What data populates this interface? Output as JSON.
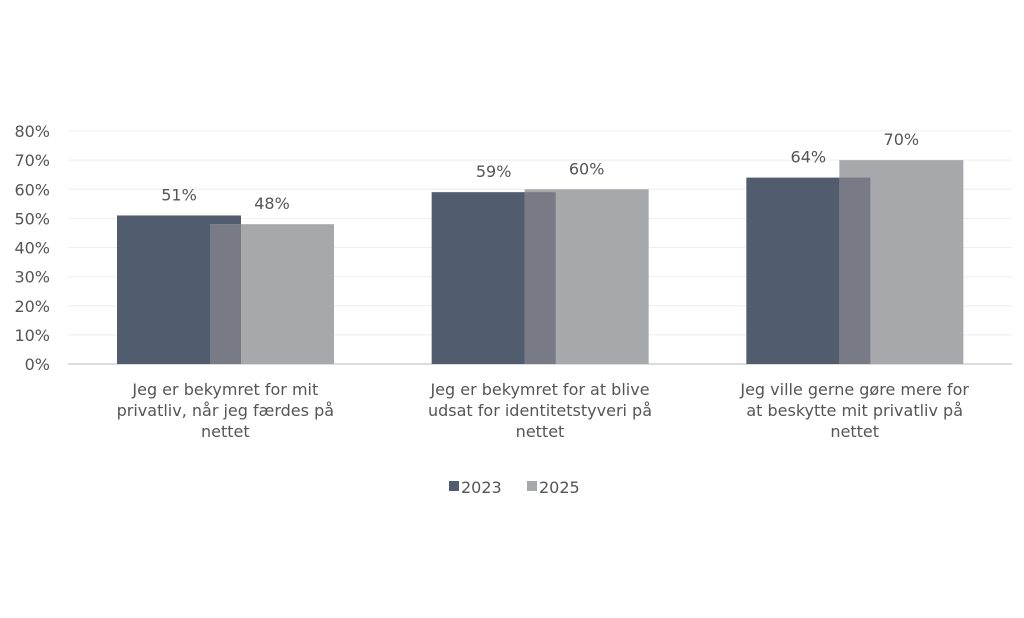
{
  "chart_data": {
    "type": "bar",
    "categories": [
      [
        "Jeg er bekymret for mit",
        "privatliv, når jeg færdes på",
        "nettet"
      ],
      [
        "Jeg er bekymret for at blive",
        "udsat for identitetstyveri  på",
        "nettet"
      ],
      [
        "Jeg ville gerne gøre mere for",
        "at beskytte mit privatliv på",
        "nettet"
      ]
    ],
    "series": [
      {
        "name": "2023",
        "values": [
          51,
          59,
          64
        ],
        "labels": [
          "51%",
          "59%",
          "64%"
        ],
        "color": "#515c6e"
      },
      {
        "name": "2025",
        "values": [
          48,
          60,
          70
        ],
        "labels": [
          "48%",
          "60%",
          "70%"
        ],
        "color": "#a7a8ab"
      }
    ],
    "overlap_color": "#787b85",
    "ylim": [
      0,
      80
    ],
    "yticks": [
      "0%",
      "10%",
      "20%",
      "30%",
      "40%",
      "50%",
      "60%",
      "70%",
      "80%"
    ],
    "grid": true,
    "legend": "bottom"
  }
}
